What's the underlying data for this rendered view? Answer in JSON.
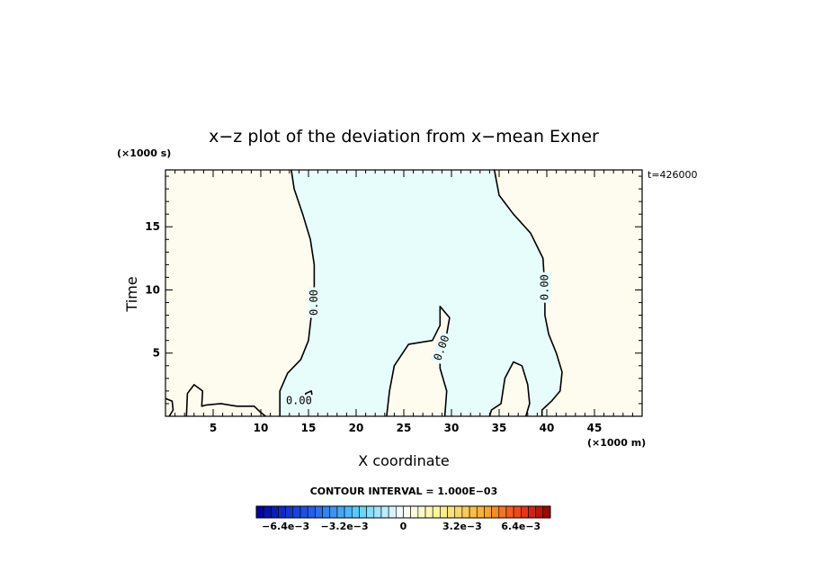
{
  "chart_data": {
    "type": "heatmap",
    "title": "x−z plot of the deviation from x−mean Exner",
    "xlabel": "X coordinate",
    "ylabel": "Time",
    "x_unit": "(×1000 m)",
    "y_unit": "(×1000 s)",
    "time_label": "t=426000",
    "xlim": [
      0,
      50
    ],
    "ylim": [
      0,
      19.5
    ],
    "x_ticks": [
      5,
      10,
      15,
      20,
      25,
      30,
      35,
      40,
      45
    ],
    "y_ticks": [
      5,
      10,
      15
    ],
    "contour_level": 0.0,
    "contour_labels": [
      "0.00",
      "0.00",
      "0.00",
      "0.00"
    ],
    "contour_interval_text": "CONTOUR INTERVAL = 1.000E−03",
    "colors": {
      "positive": "#fdfcee",
      "negative": "#e6fdfc",
      "line": "#000000"
    },
    "colorbar": {
      "min": -0.008,
      "max": 0.008,
      "ticks": [
        {
          "value": -0.0064,
          "label": "−6.4e−3"
        },
        {
          "value": -0.0032,
          "label": "−3.2e−3"
        },
        {
          "value": 0,
          "label": "0"
        },
        {
          "value": 0.0032,
          "label": "3.2e−3"
        },
        {
          "value": 0.0064,
          "label": "6.4e−3"
        }
      ]
    },
    "negative_region_left_boundary": [
      [
        13.2,
        19.5
      ],
      [
        13.5,
        18
      ],
      [
        14.4,
        16
      ],
      [
        15.2,
        14
      ],
      [
        15.6,
        12
      ],
      [
        15.6,
        10
      ],
      [
        15.3,
        8
      ],
      [
        15.0,
        6
      ],
      [
        14.2,
        4.5
      ],
      [
        12.8,
        3.4
      ],
      [
        12.0,
        2.0
      ],
      [
        12.0,
        0
      ]
    ],
    "negative_region_right_boundary": [
      [
        34.5,
        19.5
      ],
      [
        35.0,
        17.5
      ],
      [
        36.5,
        16.0
      ],
      [
        38.3,
        14.5
      ],
      [
        39.6,
        12.5
      ],
      [
        39.8,
        10
      ],
      [
        39.8,
        8
      ],
      [
        40.2,
        6.5
      ],
      [
        41.0,
        5.0
      ],
      [
        41.6,
        3.5
      ],
      [
        41.4,
        2.0
      ],
      [
        40.5,
        1.2
      ],
      [
        39.5,
        0.5
      ],
      [
        39.5,
        0
      ]
    ],
    "positive_bump_x25_32": [
      [
        23.2,
        0
      ],
      [
        23.5,
        2
      ],
      [
        24.0,
        4.0
      ],
      [
        25.5,
        5.7
      ],
      [
        28.0,
        6.0
      ],
      [
        28.8,
        7.2
      ],
      [
        28.8,
        8.7
      ],
      [
        29.8,
        7.8
      ],
      [
        29.5,
        6.5
      ],
      [
        28.8,
        5.0
      ],
      [
        28.8,
        3.8
      ],
      [
        29.5,
        2.0
      ],
      [
        29.3,
        0
      ]
    ],
    "positive_bump_x37": [
      [
        34.0,
        0
      ],
      [
        34.2,
        0.5
      ],
      [
        35.2,
        1.0
      ],
      [
        35.6,
        3.0
      ],
      [
        36.5,
        4.3
      ],
      [
        37.4,
        4.0
      ],
      [
        38.0,
        2.5
      ],
      [
        38.2,
        1.0
      ],
      [
        37.8,
        0
      ]
    ]
  }
}
